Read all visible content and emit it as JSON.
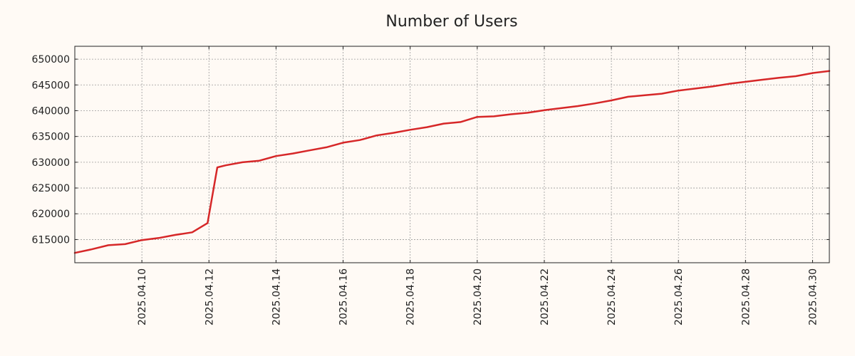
{
  "chart_data": {
    "type": "line",
    "title": "Number of Users",
    "xlabel": "",
    "ylabel": "",
    "grid": true,
    "legend": "none",
    "line_color": "#d62728",
    "background_color": "#fffaf5",
    "x_range": [
      "2025-04-08",
      "2025-04-30T12:00"
    ],
    "ylim": [
      610500,
      652500
    ],
    "x_ticks": [
      "2025.04.10",
      "2025.04.12",
      "2025.04.14",
      "2025.04.16",
      "2025.04.18",
      "2025.04.20",
      "2025.04.22",
      "2025.04.24",
      "2025.04.26",
      "2025.04.28",
      "2025.04.30"
    ],
    "y_ticks": [
      "615000",
      "620000",
      "625000",
      "630000",
      "635000",
      "640000",
      "645000",
      "650000"
    ],
    "series": [
      {
        "x": [
          "2025-04-08T00:00",
          "2025-04-08T12:00",
          "2025-04-09T00:00",
          "2025-04-09T12:00",
          "2025-04-10T00:00",
          "2025-04-10T12:00",
          "2025-04-11T00:00",
          "2025-04-11T12:00",
          "2025-04-11T23:00",
          "2025-04-12T06:00",
          "2025-04-12T12:00",
          "2025-04-13T00:00",
          "2025-04-13T12:00",
          "2025-04-14T00:00",
          "2025-04-14T12:00",
          "2025-04-15T00:00",
          "2025-04-15T12:00",
          "2025-04-16T00:00",
          "2025-04-16T12:00",
          "2025-04-17T00:00",
          "2025-04-17T12:00",
          "2025-04-18T00:00",
          "2025-04-18T12:00",
          "2025-04-19T00:00",
          "2025-04-19T12:00",
          "2025-04-20T00:00",
          "2025-04-20T12:00",
          "2025-04-21T00:00",
          "2025-04-21T12:00",
          "2025-04-22T00:00",
          "2025-04-22T12:00",
          "2025-04-23T00:00",
          "2025-04-23T12:00",
          "2025-04-24T00:00",
          "2025-04-24T12:00",
          "2025-04-25T00:00",
          "2025-04-25T12:00",
          "2025-04-26T00:00",
          "2025-04-26T12:00",
          "2025-04-27T00:00",
          "2025-04-27T12:00",
          "2025-04-28T00:00",
          "2025-04-28T12:00",
          "2025-04-29T00:00",
          "2025-04-29T12:00",
          "2025-04-30T00:00",
          "2025-04-30T12:00"
        ],
        "y": [
          612400,
          613100,
          613900,
          614100,
          614900,
          615300,
          615900,
          616400,
          618200,
          629000,
          629400,
          630000,
          630300,
          631200,
          631700,
          632300,
          632900,
          633800,
          634300,
          635200,
          635700,
          636300,
          636800,
          637500,
          637800,
          638800,
          638900,
          639300,
          639600,
          640100,
          640500,
          640900,
          641400,
          642000,
          642700,
          643000,
          643300,
          643900,
          644300,
          644700,
          645200,
          645600,
          646000,
          646400,
          646700,
          647300,
          647700
        ]
      }
    ]
  }
}
